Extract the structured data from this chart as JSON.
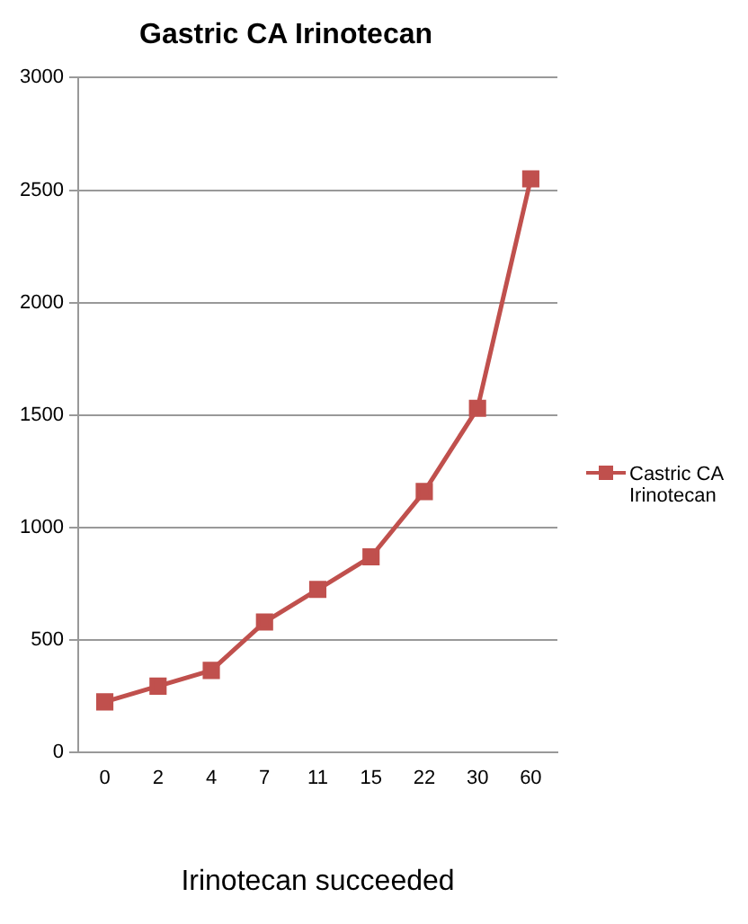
{
  "chart_data": {
    "type": "line",
    "title": "Gastric CA Irinotecan",
    "xlabel": "Irinotecan succeeded",
    "categories": [
      "0",
      "2",
      "4",
      "7",
      "11",
      "15",
      "22",
      "30",
      "60"
    ],
    "series": [
      {
        "name": "Castric CA Irinotecan",
        "color": "#c0504d",
        "values": [
          225,
          295,
          365,
          580,
          725,
          870,
          1160,
          1530,
          2550
        ]
      }
    ],
    "ylim": [
      0,
      3000
    ],
    "yticks": [
      0,
      500,
      1000,
      1500,
      2000,
      2500,
      3000
    ],
    "grid": "y",
    "legend": "right",
    "marker": "square",
    "line_style": "solid"
  }
}
